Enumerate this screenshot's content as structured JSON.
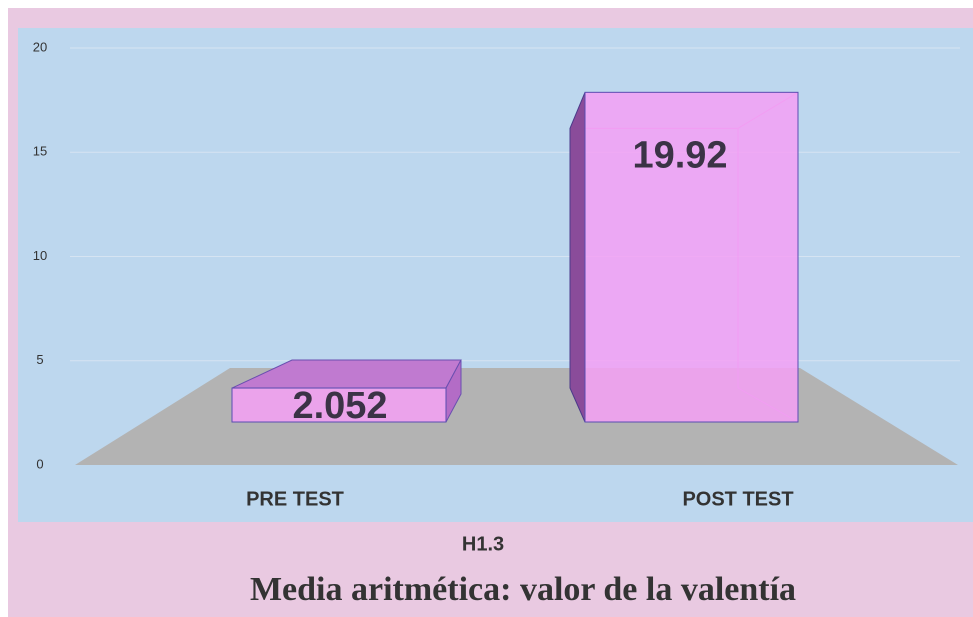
{
  "chart_data": {
    "type": "bar",
    "title": "Media aritmética: valor de la valentía",
    "x_label": "H1.3",
    "categories": [
      "PRE TEST",
      "POST TEST"
    ],
    "values": [
      2.052,
      19.92
    ],
    "color": "#f5a0f5",
    "ylim": [
      0,
      20
    ],
    "yticks": [
      0,
      5,
      10,
      15,
      20
    ],
    "grid": true
  }
}
